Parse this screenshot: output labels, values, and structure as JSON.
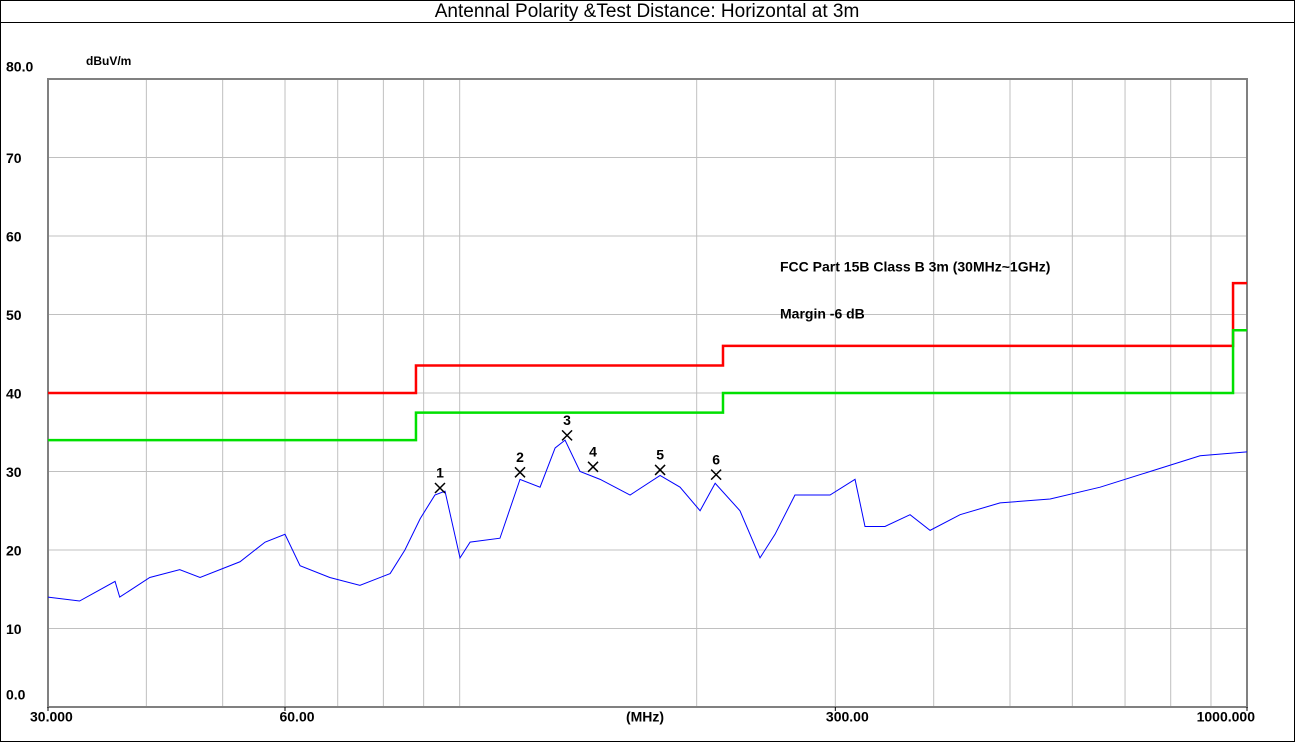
{
  "chart_data": {
    "type": "line",
    "title": "Antennal Polarity &Test Distance: Horizontal at 3m",
    "y_label": "dBuV/m",
    "x_label": "(MHz)",
    "x_scale": "log",
    "xlim": [
      30,
      1000
    ],
    "ylim": [
      0,
      80
    ],
    "xticks": [
      {
        "value": 30,
        "label": "30.000"
      },
      {
        "value": 60,
        "label": "60.00"
      },
      {
        "value": 300,
        "label": "300.00"
      },
      {
        "value": 1000,
        "label": "1000.000"
      }
    ],
    "xgrid": [
      40,
      50,
      60,
      70,
      80,
      90,
      100,
      200,
      300,
      400,
      500,
      600,
      700,
      800,
      900
    ],
    "yticks": [
      {
        "value": 0,
        "label": "0.0"
      },
      10,
      20,
      30,
      40,
      50,
      60,
      70,
      {
        "value": 80,
        "label": "80.0"
      }
    ],
    "grid": true,
    "series": [
      {
        "name": "FCC Part 15B Class B 3m (30MHz~1GHz)",
        "color": "#ff0000",
        "x": [
          30,
          88,
          88,
          216,
          216,
          960,
          960,
          1000
        ],
        "values": [
          40,
          40,
          43.5,
          43.5,
          46,
          46,
          54,
          54
        ]
      },
      {
        "name": "Margin -6 dB",
        "color": "#00e000",
        "x": [
          30,
          88,
          88,
          216,
          216,
          960,
          960,
          1000
        ],
        "values": [
          34,
          34,
          37.5,
          37.5,
          40,
          40,
          48,
          48
        ]
      },
      {
        "color": "#0000ff",
        "x": [
          30,
          32.9,
          36.5,
          37.0,
          40.4,
          44.1,
          46.8,
          52.6,
          56.6,
          60,
          62.7,
          68.4,
          74.7,
          81.6,
          85.2,
          89.1,
          93.0,
          95.8,
          100.1,
          103.1,
          112.5,
          119.3,
          126.5,
          132.2,
          136.1,
          142.2,
          150.8,
          164.6,
          179.7,
          190.5,
          202.0,
          211.1,
          227.0,
          240.7,
          251.5,
          266.6,
          295.4,
          317.8,
          327.2,
          346.9,
          373.3,
          395.8,
          432.1,
          485.7,
          562.3,
          650.8,
          753.2,
          871.8,
          1000
        ],
        "values": [
          14,
          13.5,
          16,
          14,
          16.5,
          17.5,
          16.5,
          18.5,
          21,
          22,
          18,
          16.5,
          15.5,
          17,
          20,
          24,
          27,
          27.5,
          19,
          21,
          21.5,
          29,
          28,
          33,
          34,
          30,
          29,
          27,
          29.5,
          28,
          25,
          28.5,
          25,
          19,
          22,
          27,
          27,
          29,
          23,
          23,
          24.5,
          22.5,
          24.5,
          26,
          26.5,
          28,
          30,
          32,
          32.5
        ]
      }
    ],
    "markers": {
      "labels": [
        "1",
        "2",
        "3",
        "4",
        "5",
        "6"
      ],
      "x": [
        94.4,
        119.3,
        136.9,
        147.7,
        179.7,
        211.7
      ],
      "values": [
        27.9,
        29.9,
        34.6,
        30.6,
        30.2,
        29.6
      ]
    }
  }
}
